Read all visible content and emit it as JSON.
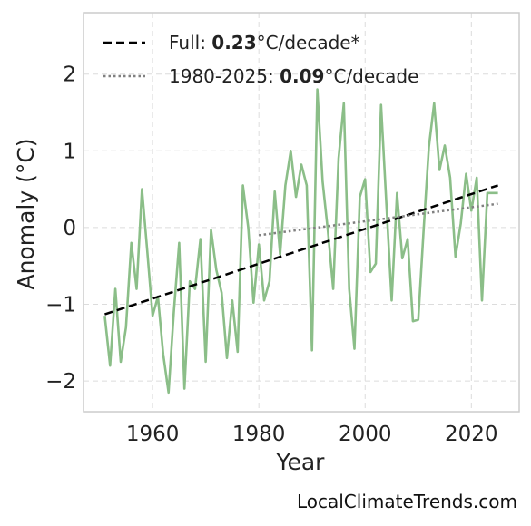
{
  "chart_data": {
    "type": "line",
    "xlabel": "Year",
    "ylabel": "Anomaly (°C)",
    "xlim": [
      1947,
      2029
    ],
    "ylim": [
      -2.4,
      2.8
    ],
    "xticks": [
      1960,
      1980,
      2000,
      2020
    ],
    "yticks": [
      -2,
      -1,
      0,
      1,
      2
    ],
    "grid": true,
    "legend_position": "top-left",
    "series": [
      {
        "x": [
          1951,
          1952,
          1953,
          1954,
          1955,
          1956,
          1957,
          1958,
          1959,
          1960,
          1961,
          1962,
          1963,
          1964,
          1965,
          1966,
          1967,
          1968,
          1969,
          1970,
          1971,
          1972,
          1973,
          1974,
          1975,
          1976,
          1977,
          1978,
          1979,
          1980,
          1981,
          1982,
          1983,
          1984,
          1985,
          1986,
          1987,
          1988,
          1989,
          1990,
          1991,
          1992,
          1993,
          1994,
          1995,
          1996,
          1997,
          1998,
          1999,
          2000,
          2001,
          2002,
          2003,
          2004,
          2005,
          2006,
          2007,
          2008,
          2009,
          2010,
          2011,
          2012,
          2013,
          2014,
          2015,
          2016,
          2017,
          2018,
          2019,
          2020,
          2021,
          2022,
          2023,
          2024,
          2025
        ],
        "y": [
          -1.15,
          -1.8,
          -0.8,
          -1.75,
          -1.3,
          -0.2,
          -0.8,
          0.5,
          -0.3,
          -1.15,
          -0.9,
          -1.65,
          -2.15,
          -1.1,
          -0.2,
          -2.1,
          -0.7,
          -0.8,
          -0.15,
          -1.75,
          -0.03,
          -0.55,
          -0.85,
          -1.7,
          -0.95,
          -1.62,
          0.55,
          0.0,
          -0.98,
          -0.22,
          -0.95,
          -0.7,
          0.47,
          -0.35,
          0.55,
          1.0,
          0.4,
          0.82,
          0.55,
          -1.6,
          1.8,
          0.6,
          -0.05,
          -0.8,
          0.9,
          1.62,
          -0.8,
          -1.58,
          0.4,
          0.63,
          -0.58,
          -0.47,
          1.6,
          0.3,
          -0.95,
          0.45,
          -0.4,
          -0.15,
          -1.22,
          -1.2,
          -0.05,
          1.05,
          1.62,
          0.75,
          1.07,
          0.65,
          -0.38,
          0.05,
          0.7,
          0.22,
          0.65,
          -0.95,
          0.45,
          0.45,
          0.45
        ],
        "color": "#8bbe88"
      }
    ],
    "trendlines": [
      {
        "label_prefix": "Full: ",
        "rate": "0.23",
        "unit": "°C/decade*",
        "x": [
          1951,
          2025
        ],
        "y": [
          -1.13,
          0.55
        ],
        "style": "dashed",
        "color": "#000000"
      },
      {
        "label_prefix": "1980-2025: ",
        "rate": "0.09",
        "unit": "°C/decade",
        "x": [
          1980,
          2025
        ],
        "y": [
          -0.1,
          0.31
        ],
        "style": "dotted",
        "color": "#808080"
      }
    ]
  },
  "watermark": "LocalClimateTrends.com"
}
